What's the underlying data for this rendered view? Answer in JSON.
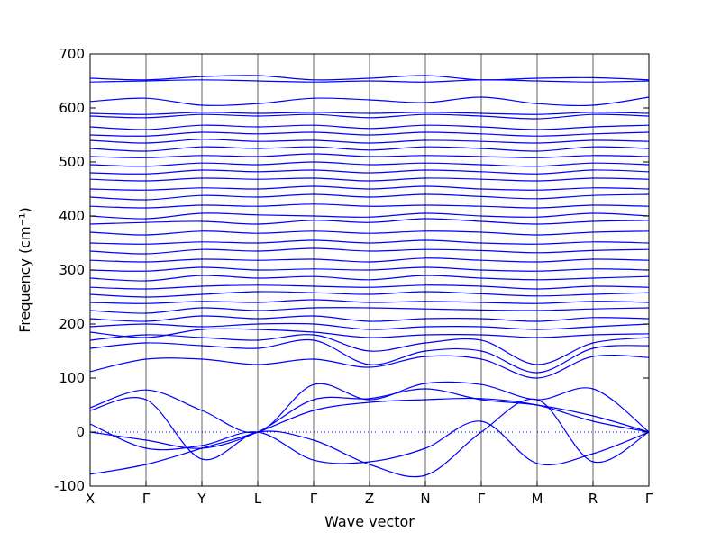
{
  "chart_data": {
    "type": "line",
    "xlabel": "Wave vector",
    "ylabel": "Frequency (cm⁻¹)",
    "ylim": [
      -100,
      700
    ],
    "yticks": [
      -100,
      0,
      100,
      200,
      300,
      400,
      500,
      600,
      700
    ],
    "xticks": [
      "X",
      "Γ",
      "Y",
      "L",
      "Γ",
      "Z",
      "N",
      "Γ",
      "M",
      "R",
      "Γ"
    ],
    "zero_line": true,
    "line_color": "#0000ff",
    "series": [
      {
        "values": [
          -78,
          -60,
          -30,
          0,
          40,
          55,
          60,
          62,
          50,
          20,
          0
        ]
      },
      {
        "values": [
          15,
          -30,
          -25,
          0,
          -52,
          -55,
          -30,
          20,
          -58,
          -40,
          0
        ]
      },
      {
        "values": [
          45,
          78,
          40,
          0,
          88,
          60,
          90,
          88,
          60,
          80,
          0
        ]
      },
      {
        "values": [
          0,
          -15,
          -30,
          0,
          60,
          62,
          80,
          60,
          50,
          30,
          0
        ]
      },
      {
        "values": [
          40,
          60,
          -50,
          0,
          -15,
          -60,
          -80,
          0,
          60,
          -55,
          0
        ]
      },
      {
        "values": [
          112,
          135,
          135,
          125,
          135,
          120,
          140,
          135,
          100,
          140,
          138
        ]
      },
      {
        "values": [
          155,
          165,
          160,
          155,
          170,
          125,
          150,
          150,
          110,
          155,
          160
        ]
      },
      {
        "values": [
          170,
          180,
          175,
          170,
          180,
          150,
          165,
          170,
          125,
          165,
          175
        ]
      },
      {
        "values": [
          185,
          175,
          190,
          190,
          185,
          175,
          180,
          180,
          175,
          180,
          182
        ]
      },
      {
        "values": [
          195,
          200,
          195,
          200,
          200,
          190,
          195,
          195,
          190,
          195,
          200
        ]
      },
      {
        "values": [
          210,
          205,
          215,
          210,
          215,
          205,
          210,
          210,
          205,
          212,
          210
        ]
      },
      {
        "values": [
          225,
          220,
          230,
          225,
          230,
          230,
          228,
          226,
          225,
          228,
          230
        ]
      },
      {
        "values": [
          240,
          238,
          242,
          240,
          245,
          240,
          242,
          240,
          238,
          242,
          240
        ]
      },
      {
        "values": [
          255,
          250,
          255,
          260,
          258,
          255,
          260,
          256,
          252,
          255,
          258
        ]
      },
      {
        "values": [
          268,
          265,
          270,
          272,
          270,
          268,
          272,
          270,
          265,
          270,
          268
        ]
      },
      {
        "values": [
          285,
          280,
          290,
          285,
          288,
          282,
          290,
          285,
          282,
          285,
          288
        ]
      },
      {
        "values": [
          300,
          298,
          305,
          300,
          302,
          300,
          305,
          300,
          298,
          302,
          300
        ]
      },
      {
        "values": [
          318,
          315,
          320,
          318,
          320,
          315,
          322,
          318,
          315,
          320,
          318
        ]
      },
      {
        "values": [
          335,
          330,
          338,
          335,
          340,
          335,
          338,
          336,
          332,
          336,
          338
        ]
      },
      {
        "values": [
          350,
          348,
          352,
          350,
          355,
          350,
          355,
          350,
          348,
          352,
          350
        ]
      },
      {
        "values": [
          370,
          365,
          372,
          368,
          372,
          368,
          372,
          370,
          365,
          370,
          372
        ]
      },
      {
        "values": [
          385,
          388,
          390,
          385,
          392,
          388,
          395,
          390,
          385,
          390,
          392
        ]
      },
      {
        "values": [
          400,
          395,
          405,
          402,
          400,
          398,
          405,
          400,
          398,
          405,
          400
        ]
      },
      {
        "values": [
          418,
          415,
          420,
          418,
          422,
          418,
          420,
          418,
          415,
          420,
          418
        ]
      },
      {
        "values": [
          435,
          430,
          438,
          435,
          440,
          435,
          440,
          436,
          432,
          438,
          440
        ]
      },
      {
        "values": [
          450,
          448,
          452,
          450,
          455,
          450,
          455,
          450,
          448,
          452,
          450
        ]
      },
      {
        "values": [
          468,
          465,
          470,
          468,
          470,
          465,
          470,
          468,
          465,
          470,
          468
        ]
      },
      {
        "values": [
          480,
          478,
          485,
          482,
          485,
          480,
          485,
          482,
          478,
          485,
          482
        ]
      },
      {
        "values": [
          495,
          492,
          498,
          495,
          500,
          495,
          498,
          495,
          492,
          498,
          495
        ]
      },
      {
        "values": [
          510,
          508,
          512,
          510,
          515,
          510,
          512,
          510,
          508,
          512,
          510
        ]
      },
      {
        "values": [
          525,
          520,
          528,
          525,
          528,
          522,
          528,
          525,
          520,
          528,
          525
        ]
      },
      {
        "values": [
          540,
          535,
          542,
          538,
          540,
          535,
          540,
          538,
          535,
          540,
          538
        ]
      },
      {
        "values": [
          550,
          548,
          555,
          552,
          555,
          550,
          555,
          552,
          548,
          552,
          555
        ]
      },
      {
        "values": [
          565,
          560,
          568,
          565,
          568,
          562,
          568,
          565,
          560,
          565,
          568
        ]
      },
      {
        "values": [
          585,
          582,
          588,
          585,
          588,
          582,
          588,
          585,
          580,
          588,
          585
        ]
      },
      {
        "values": [
          590,
          588,
          592,
          590,
          592,
          590,
          592,
          590,
          588,
          592,
          590
        ]
      },
      {
        "values": [
          612,
          618,
          605,
          608,
          618,
          615,
          610,
          620,
          608,
          605,
          620
        ]
      },
      {
        "values": [
          648,
          650,
          652,
          650,
          648,
          650,
          648,
          652,
          650,
          648,
          650
        ]
      },
      {
        "values": [
          655,
          652,
          658,
          660,
          652,
          655,
          660,
          652,
          655,
          656,
          652
        ]
      }
    ]
  }
}
